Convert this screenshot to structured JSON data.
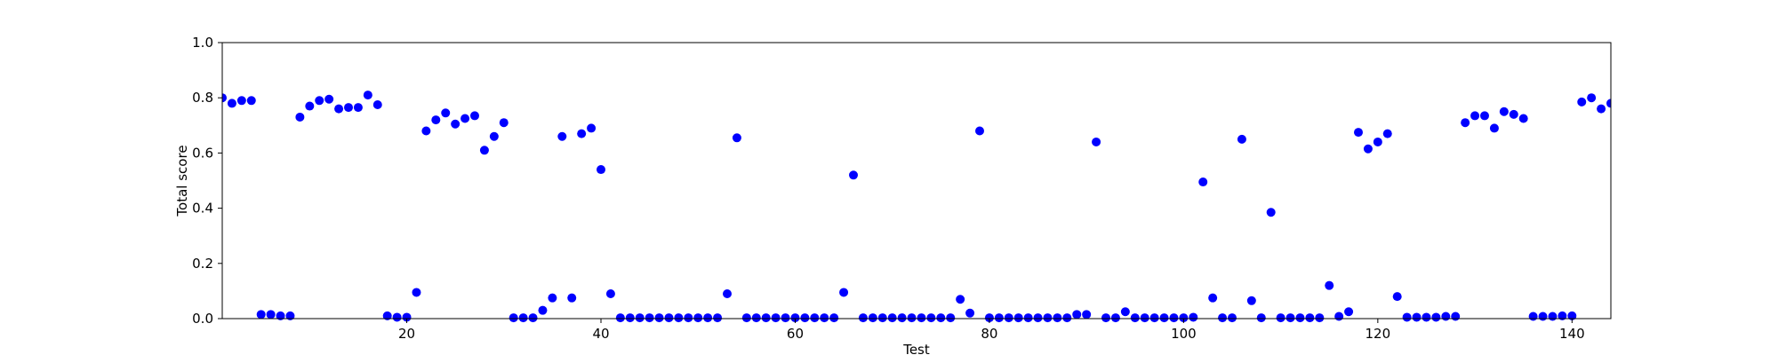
{
  "chart_data": {
    "type": "scatter",
    "title": "",
    "xlabel": "Test",
    "ylabel": "Total score",
    "xlim": [
      1,
      144
    ],
    "ylim": [
      0,
      1.0
    ],
    "x_ticks": [
      20,
      40,
      60,
      80,
      100,
      120,
      140
    ],
    "y_ticks": [
      0.0,
      0.2,
      0.4,
      0.6,
      0.8,
      1.0
    ],
    "x_tick_labels": [
      "20",
      "40",
      "60",
      "80",
      "100",
      "120",
      "140"
    ],
    "y_tick_labels": [
      "0.0",
      "0.2",
      "0.4",
      "0.6",
      "0.8",
      "1.0"
    ],
    "grid": false,
    "marker_color": "#0000ff",
    "series": [
      {
        "points": [
          [
            1,
            0.8
          ],
          [
            2,
            0.78
          ],
          [
            3,
            0.79
          ],
          [
            4,
            0.79
          ],
          [
            5,
            0.015
          ],
          [
            6,
            0.015
          ],
          [
            7,
            0.01
          ],
          [
            8,
            0.01
          ],
          [
            9,
            0.73
          ],
          [
            10,
            0.77
          ],
          [
            11,
            0.79
          ],
          [
            12,
            0.795
          ],
          [
            13,
            0.76
          ],
          [
            14,
            0.765
          ],
          [
            15,
            0.765
          ],
          [
            16,
            0.81
          ],
          [
            17,
            0.775
          ],
          [
            18,
            0.01
          ],
          [
            19,
            0.005
          ],
          [
            20,
            0.005
          ],
          [
            21,
            0.095
          ],
          [
            22,
            0.68
          ],
          [
            23,
            0.72
          ],
          [
            24,
            0.745
          ],
          [
            25,
            0.705
          ],
          [
            26,
            0.725
          ],
          [
            27,
            0.735
          ],
          [
            28,
            0.61
          ],
          [
            29,
            0.66
          ],
          [
            30,
            0.71
          ],
          [
            31,
            0.003
          ],
          [
            32,
            0.003
          ],
          [
            33,
            0.003
          ],
          [
            34,
            0.03
          ],
          [
            35,
            0.075
          ],
          [
            36,
            0.66
          ],
          [
            37,
            0.075
          ],
          [
            38,
            0.67
          ],
          [
            39,
            0.69
          ],
          [
            40,
            0.54
          ],
          [
            41,
            0.09
          ],
          [
            42,
            0.003
          ],
          [
            43,
            0.003
          ],
          [
            44,
            0.003
          ],
          [
            45,
            0.003
          ],
          [
            46,
            0.003
          ],
          [
            47,
            0.003
          ],
          [
            48,
            0.003
          ],
          [
            49,
            0.003
          ],
          [
            50,
            0.003
          ],
          [
            51,
            0.003
          ],
          [
            52,
            0.003
          ],
          [
            53,
            0.09
          ],
          [
            54,
            0.655
          ],
          [
            55,
            0.003
          ],
          [
            56,
            0.003
          ],
          [
            57,
            0.003
          ],
          [
            58,
            0.003
          ],
          [
            59,
            0.003
          ],
          [
            60,
            0.003
          ],
          [
            61,
            0.003
          ],
          [
            62,
            0.003
          ],
          [
            63,
            0.003
          ],
          [
            64,
            0.003
          ],
          [
            65,
            0.095
          ],
          [
            66,
            0.52
          ],
          [
            67,
            0.003
          ],
          [
            68,
            0.003
          ],
          [
            69,
            0.003
          ],
          [
            70,
            0.003
          ],
          [
            71,
            0.003
          ],
          [
            72,
            0.003
          ],
          [
            73,
            0.003
          ],
          [
            74,
            0.003
          ],
          [
            75,
            0.003
          ],
          [
            76,
            0.003
          ],
          [
            77,
            0.07
          ],
          [
            78,
            0.02
          ],
          [
            79,
            0.68
          ],
          [
            80,
            0.003
          ],
          [
            81,
            0.003
          ],
          [
            82,
            0.003
          ],
          [
            83,
            0.003
          ],
          [
            84,
            0.003
          ],
          [
            85,
            0.003
          ],
          [
            86,
            0.003
          ],
          [
            87,
            0.003
          ],
          [
            88,
            0.003
          ],
          [
            89,
            0.015
          ],
          [
            90,
            0.015
          ],
          [
            91,
            0.64
          ],
          [
            92,
            0.003
          ],
          [
            93,
            0.003
          ],
          [
            94,
            0.025
          ],
          [
            95,
            0.003
          ],
          [
            96,
            0.003
          ],
          [
            97,
            0.003
          ],
          [
            98,
            0.003
          ],
          [
            99,
            0.003
          ],
          [
            100,
            0.003
          ],
          [
            101,
            0.005
          ],
          [
            102,
            0.495
          ],
          [
            103,
            0.075
          ],
          [
            104,
            0.003
          ],
          [
            105,
            0.003
          ],
          [
            106,
            0.65
          ],
          [
            107,
            0.065
          ],
          [
            108,
            0.003
          ],
          [
            109,
            0.385
          ],
          [
            110,
            0.003
          ],
          [
            111,
            0.003
          ],
          [
            112,
            0.003
          ],
          [
            113,
            0.003
          ],
          [
            114,
            0.003
          ],
          [
            115,
            0.12
          ],
          [
            116,
            0.008
          ],
          [
            117,
            0.025
          ],
          [
            118,
            0.675
          ],
          [
            119,
            0.615
          ],
          [
            120,
            0.64
          ],
          [
            121,
            0.67
          ],
          [
            122,
            0.08
          ],
          [
            123,
            0.005
          ],
          [
            124,
            0.005
          ],
          [
            125,
            0.005
          ],
          [
            126,
            0.005
          ],
          [
            127,
            0.008
          ],
          [
            128,
            0.008
          ],
          [
            129,
            0.71
          ],
          [
            130,
            0.735
          ],
          [
            131,
            0.735
          ],
          [
            132,
            0.69
          ],
          [
            133,
            0.75
          ],
          [
            134,
            0.74
          ],
          [
            135,
            0.725
          ],
          [
            136,
            0.008
          ],
          [
            137,
            0.008
          ],
          [
            138,
            0.008
          ],
          [
            139,
            0.01
          ],
          [
            140,
            0.01
          ],
          [
            141,
            0.785
          ],
          [
            142,
            0.8
          ],
          [
            143,
            0.76
          ],
          [
            144,
            0.78
          ]
        ]
      }
    ]
  }
}
